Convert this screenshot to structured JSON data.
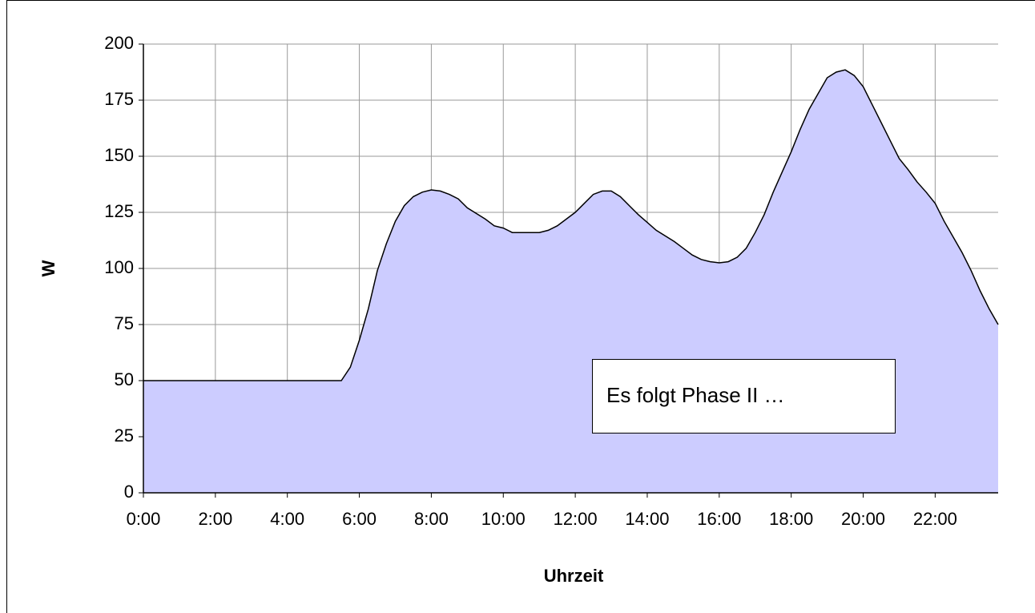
{
  "chart_data": {
    "type": "area",
    "x": [
      0,
      5.5,
      5.75,
      6,
      6.25,
      6.5,
      6.75,
      7,
      7.25,
      7.5,
      7.75,
      8,
      8.25,
      8.5,
      8.75,
      9,
      9.5,
      9.75,
      10,
      10.25,
      11,
      11.25,
      11.5,
      12,
      12.25,
      12.5,
      12.75,
      13,
      13.25,
      13.5,
      13.75,
      14,
      14.25,
      14.75,
      15,
      15.25,
      15.5,
      15.75,
      16,
      16.25,
      16.5,
      16.75,
      17,
      17.25,
      17.5,
      17.75,
      18,
      18.25,
      18.5,
      18.75,
      19,
      19.25,
      19.5,
      19.75,
      20,
      20.25,
      20.5,
      20.75,
      21,
      21.25,
      21.5,
      21.75,
      22,
      22.25,
      22.5,
      22.75,
      23,
      23.25,
      23.5,
      23.75
    ],
    "values": [
      50,
      50,
      56,
      68,
      82,
      99,
      111,
      121,
      128,
      132,
      134,
      135,
      134.5,
      133,
      131,
      127,
      122,
      119,
      118,
      116,
      116,
      117,
      119,
      125,
      129,
      133,
      134.5,
      134.5,
      132,
      128,
      124,
      120.5,
      117,
      112,
      109,
      106,
      104,
      103,
      102.5,
      103,
      105,
      109,
      116,
      124,
      134,
      143,
      152,
      162,
      171,
      178,
      185,
      187.5,
      188.5,
      186,
      181,
      173,
      165,
      157,
      149,
      144,
      138.5,
      134,
      129,
      121,
      114,
      107,
      99,
      90,
      82,
      75
    ],
    "color": "#ccccff",
    "xlabel": "Uhrzeit",
    "ylabel": "W",
    "xlim": [
      0,
      23.75
    ],
    "xticks": [
      {
        "value": 0,
        "label": "0:00"
      },
      {
        "value": 2,
        "label": "2:00"
      },
      {
        "value": 4,
        "label": "4:00"
      },
      {
        "value": 6,
        "label": "6:00"
      },
      {
        "value": 8,
        "label": "8:00"
      },
      {
        "value": 10,
        "label": "10:00"
      },
      {
        "value": 12,
        "label": "12:00"
      },
      {
        "value": 14,
        "label": "14:00"
      },
      {
        "value": 16,
        "label": "16:00"
      },
      {
        "value": 18,
        "label": "18:00"
      },
      {
        "value": 20,
        "label": "20:00"
      },
      {
        "value": 22,
        "label": "22:00"
      }
    ],
    "ylim": [
      0,
      200
    ],
    "yticks": [
      0,
      25,
      50,
      75,
      100,
      125,
      150,
      175,
      200
    ],
    "grid": true,
    "annotation": "Es folgt Phase II …"
  }
}
